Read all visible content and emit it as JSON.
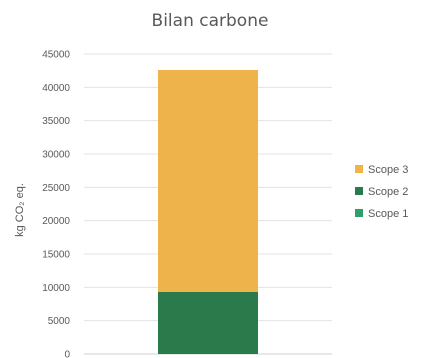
{
  "chart_data": {
    "type": "bar",
    "stacked": true,
    "title": "Bilan carbone",
    "ylabel": "kg CO₂ eq.",
    "xlabel": "",
    "categories": [
      ""
    ],
    "ylim": [
      0,
      45000
    ],
    "yticks": [
      0,
      5000,
      10000,
      15000,
      20000,
      25000,
      30000,
      35000,
      40000,
      45000
    ],
    "grid": true,
    "legend_position": "right",
    "series": [
      {
        "name": "Scope 1",
        "values": [
          0
        ],
        "color": "#2e9e6b"
      },
      {
        "name": "Scope 2",
        "values": [
          9300
        ],
        "color": "#2b7a4b"
      },
      {
        "name": "Scope 3",
        "values": [
          33300
        ],
        "color": "#efb34c"
      }
    ],
    "legend_order": [
      "Scope 3",
      "Scope 2",
      "Scope 1"
    ]
  }
}
